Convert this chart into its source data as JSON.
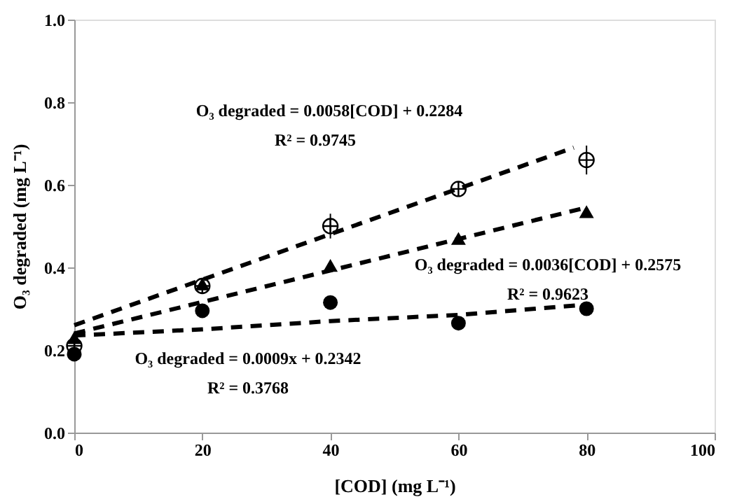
{
  "chart_data": {
    "type": "scatter",
    "xlabel": "[COD] (mg L⁻¹)",
    "ylabel": "O₃ degraded (mg L⁻¹)",
    "x": [
      0,
      20,
      40,
      60,
      80
    ],
    "series": [
      {
        "color": "#000000",
        "marker": "cross",
        "values": [
          0.21,
          0.355,
          0.5,
          0.59,
          0.66
        ],
        "errors": [
          null,
          null,
          0.03,
          null,
          0.035
        ]
      },
      {
        "color": "#000000",
        "marker": "triangle",
        "values": [
          0.23,
          0.36,
          0.405,
          0.47,
          0.535
        ]
      },
      {
        "color": "#000000",
        "marker": "circle",
        "values": [
          0.19,
          0.295,
          0.315,
          0.265,
          0.3
        ]
      },
      {
        "type": "line",
        "line_style": "dashed",
        "marker": "none",
        "color": "#000000",
        "x": [
          0,
          78
        ],
        "values": [
          0.26,
          0.69
        ]
      },
      {
        "type": "line",
        "line_style": "dashed",
        "marker": "none",
        "color": "#000000",
        "x": [
          0,
          80
        ],
        "values": [
          0.24,
          0.545
        ]
      },
      {
        "type": "line",
        "line_style": "dashed",
        "marker": "none",
        "color": "#000000",
        "x": [
          0,
          20,
          40,
          60,
          80
        ],
        "values": [
          0.235,
          0.25,
          0.27,
          0.285,
          0.31
        ]
      }
    ],
    "xlim": [
      0,
      100
    ],
    "xticks": [
      0,
      20,
      40,
      60,
      80,
      100
    ],
    "ylim": [
      0,
      1
    ],
    "yticks": [
      {
        "value": 0,
        "label": "0.0"
      },
      {
        "value": 0.2,
        "label": "0.2"
      },
      {
        "value": 0.4,
        "label": "0.4"
      },
      {
        "value": 0.6,
        "label": "0.6"
      },
      {
        "value": 0.8,
        "label": "0.8"
      },
      {
        "value": 1,
        "label": "1.0"
      }
    ],
    "grid": false,
    "annotations": [
      "O₃ degraded = 0.0058[COD] + 0.2284",
      "R² = 0.9745",
      "O₃ degraded = 0.0036[COD] + 0.2575",
      "R² = 0.9623",
      "O₃ degraded = 0.0009x + 0.2342",
      "R² = 0.3768"
    ]
  }
}
